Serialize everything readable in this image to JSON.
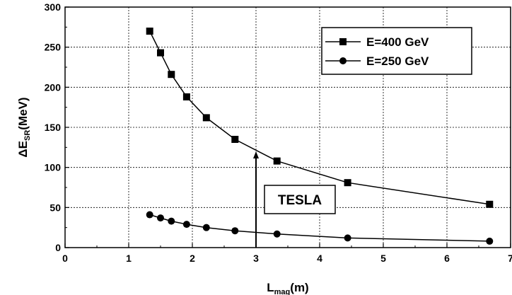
{
  "chart_data": {
    "type": "line",
    "xlabel": {
      "main": "L",
      "sub": "mag",
      "unit": "(m)"
    },
    "ylabel": {
      "main": "ΔE",
      "sub": "SR",
      "unit": "(MeV)"
    },
    "xlim": [
      0,
      7
    ],
    "ylim": [
      0,
      300
    ],
    "xticks": [
      0,
      1,
      2,
      3,
      4,
      5,
      6,
      7
    ],
    "yticks": [
      0,
      50,
      100,
      150,
      200,
      250,
      300
    ],
    "grid": true,
    "legend_position": "top-right",
    "series": [
      {
        "name": "E=400 GeV",
        "marker": "square",
        "color": "#000000",
        "x": [
          1.33,
          1.5,
          1.67,
          1.91,
          2.22,
          2.67,
          3.33,
          4.44,
          6.67
        ],
        "y": [
          270,
          243,
          216,
          188,
          162,
          135,
          108,
          81,
          54
        ]
      },
      {
        "name": "E=250 GeV",
        "marker": "circle",
        "color": "#000000",
        "x": [
          1.33,
          1.5,
          1.67,
          1.91,
          2.22,
          2.67,
          3.33,
          4.44,
          6.67
        ],
        "y": [
          41,
          37,
          33,
          29,
          25,
          21,
          17,
          12,
          8
        ]
      }
    ],
    "annotations": [
      {
        "text": "TESLA",
        "arrow_x": 3,
        "arrow_from_y": 0,
        "arrow_to_y": 120
      }
    ]
  }
}
